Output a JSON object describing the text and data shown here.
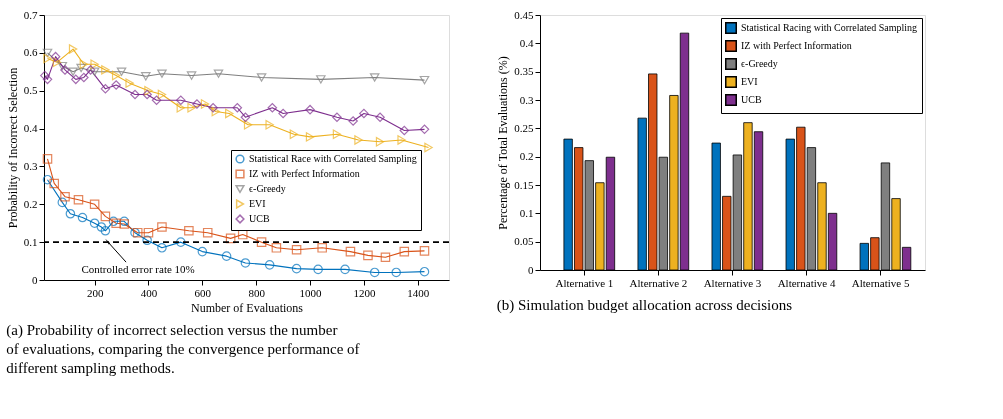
{
  "chart_data": [
    {
      "type": "line",
      "title": "(a) Probability of incorrect selection versus the number of evaluations, comparing the convergence performance of different sampling methods.",
      "xlabel": "Number of Evaluations",
      "ylabel": "Probability of Incorrect Selection",
      "xlim": [
        12,
        1516
      ],
      "ylim": [
        0,
        0.7
      ],
      "xticks": [
        200,
        400,
        600,
        800,
        1000,
        1200,
        1400
      ],
      "yticks": [
        0,
        0.1,
        0.2,
        0.3,
        0.4,
        0.5,
        0.6,
        0.7
      ],
      "grid": false,
      "legend": "right",
      "line_style": "solid",
      "series": [
        {
          "name": "Statistical Race with Correlated Sampling",
          "color": "#0072bd",
          "marker": "circle",
          "x": [
            25,
            80,
            110,
            155,
            200,
            225,
            240,
            270,
            310,
            350,
            395,
            450,
            520,
            600,
            690,
            760,
            850,
            950,
            1030,
            1130,
            1240,
            1320,
            1425
          ],
          "values": [
            0.265,
            0.205,
            0.175,
            0.165,
            0.15,
            0.14,
            0.13,
            0.155,
            0.155,
            0.125,
            0.105,
            0.085,
            0.1,
            0.075,
            0.063,
            0.045,
            0.04,
            0.03,
            0.028,
            0.028,
            0.02,
            0.02,
            0.022
          ]
        },
        {
          "name": "IZ with Perfect Information",
          "color": "#d95319",
          "marker": "square",
          "x": [
            25,
            50,
            90,
            140,
            200,
            240,
            280,
            310,
            360,
            400,
            450,
            550,
            620,
            705,
            750,
            820,
            875,
            950,
            1045,
            1150,
            1215,
            1280,
            1350,
            1425
          ],
          "values": [
            0.32,
            0.255,
            0.22,
            0.212,
            0.2,
            0.168,
            0.15,
            0.148,
            0.125,
            0.125,
            0.14,
            0.13,
            0.125,
            0.11,
            0.12,
            0.1,
            0.085,
            0.08,
            0.085,
            0.075,
            0.065,
            0.06,
            0.075,
            0.077
          ]
        },
        {
          "name": "ϵ-Greedy",
          "color": "#7f7f7f",
          "marker": "triangle-down",
          "x": [
            25,
            80,
            120,
            150,
            200,
            300,
            390,
            450,
            560,
            660,
            820,
            1040,
            1240,
            1425
          ],
          "values": [
            0.6,
            0.565,
            0.55,
            0.56,
            0.55,
            0.55,
            0.538,
            0.545,
            0.54,
            0.545,
            0.535,
            0.53,
            0.535,
            0.528
          ]
        },
        {
          "name": "EVI",
          "color": "#edb120",
          "marker": "triangle-right",
          "x": [
            25,
            60,
            120,
            160,
            200,
            240,
            280,
            330,
            400,
            450,
            520,
            560,
            610,
            650,
            700,
            770,
            850,
            940,
            1000,
            1100,
            1180,
            1260,
            1340,
            1440
          ],
          "values": [
            0.585,
            0.575,
            0.61,
            0.57,
            0.57,
            0.555,
            0.54,
            0.52,
            0.5,
            0.49,
            0.455,
            0.455,
            0.465,
            0.445,
            0.44,
            0.41,
            0.41,
            0.385,
            0.378,
            0.385,
            0.37,
            0.365,
            0.37,
            0.35
          ]
        },
        {
          "name": "UCB",
          "color": "#7e2f8e",
          "marker": "diamond",
          "x": [
            15,
            25,
            55,
            90,
            130,
            160,
            185,
            240,
            280,
            350,
            395,
            430,
            520,
            580,
            640,
            730,
            760,
            860,
            900,
            1000,
            1100,
            1160,
            1200,
            1260,
            1350,
            1425
          ],
          "values": [
            0.54,
            0.53,
            0.59,
            0.555,
            0.53,
            0.535,
            0.555,
            0.505,
            0.515,
            0.49,
            0.49,
            0.475,
            0.475,
            0.465,
            0.455,
            0.455,
            0.43,
            0.455,
            0.44,
            0.45,
            0.43,
            0.42,
            0.44,
            0.43,
            0.395,
            0.398
          ]
        }
      ],
      "ref_lines": [
        {
          "axis": "y",
          "value": 0.1,
          "color": "#000000",
          "line_style": "dashed"
        }
      ],
      "annotations": [
        {
          "text": "Controlled error rate 10%",
          "x": 250,
          "y": 0.1
        }
      ]
    },
    {
      "type": "bar",
      "title": "(b) Simulation budget allocation across decisions",
      "ylabel": "Percentage of Total Evaluations (%)",
      "categories": [
        "Alternative 1",
        "Alternative 2",
        "Alternative 3",
        "Alternative 4",
        "Alternative 5"
      ],
      "ylim": [
        0,
        0.45
      ],
      "yticks": [
        0,
        0.05,
        0.1,
        0.15,
        0.2,
        0.25,
        0.3,
        0.35,
        0.4,
        0.45
      ],
      "grid": false,
      "legend": "top right",
      "series": [
        {
          "name": "Statistical Racing with Correlated Sampling",
          "color": "#0072bd",
          "values": [
            0.231,
            0.268,
            0.224,
            0.231,
            0.047
          ]
        },
        {
          "name": "IZ with Perfect Information",
          "color": "#d95319",
          "values": [
            0.216,
            0.346,
            0.13,
            0.252,
            0.057
          ]
        },
        {
          "name": "ϵ-Greedy",
          "color": "#7f7f7f",
          "values": [
            0.193,
            0.199,
            0.203,
            0.216,
            0.189
          ]
        },
        {
          "name": "EVI",
          "color": "#edb120",
          "values": [
            0.154,
            0.308,
            0.26,
            0.154,
            0.126
          ]
        },
        {
          "name": "UCB",
          "color": "#7e2f8e",
          "values": [
            0.199,
            0.418,
            0.244,
            0.1,
            0.04
          ]
        }
      ]
    }
  ]
}
